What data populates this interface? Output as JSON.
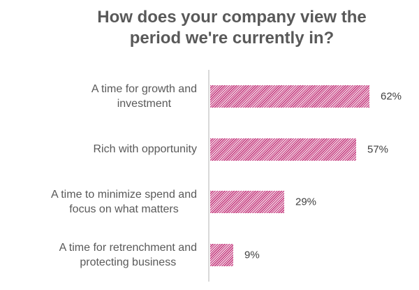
{
  "title": {
    "line1": "How does your company view the",
    "line2": "period we're currently in?"
  },
  "chart_data": {
    "type": "bar",
    "orientation": "horizontal",
    "title": "How does your company view the period we're currently in?",
    "categories": [
      "A time for growth and investment",
      "Rich with opportunity",
      "A time to minimize spend and focus on what matters",
      "A time for retrenchment and protecting business"
    ],
    "category_lines": [
      [
        "A time for growth and",
        "investment"
      ],
      [
        "Rich with opportunity"
      ],
      [
        "A time to minimize spend and",
        "focus on what matters"
      ],
      [
        "A time for retrenchment and",
        "protecting business"
      ]
    ],
    "values": [
      62,
      57,
      29,
      9
    ],
    "value_labels": [
      "62%",
      "57%",
      "29%",
      "9%"
    ],
    "xlim": [
      0,
      100
    ],
    "grid": false,
    "legend": "none",
    "bar_fill_style": "diagonal-hatch",
    "colors": {
      "bar_stripe": "#c23579",
      "bar_stripe_bg": "#f6dcea",
      "axis_line": "#d9d9d9",
      "title_text": "#595959",
      "category_text": "#595959",
      "value_text": "#404040",
      "background": "#ffffff"
    }
  }
}
